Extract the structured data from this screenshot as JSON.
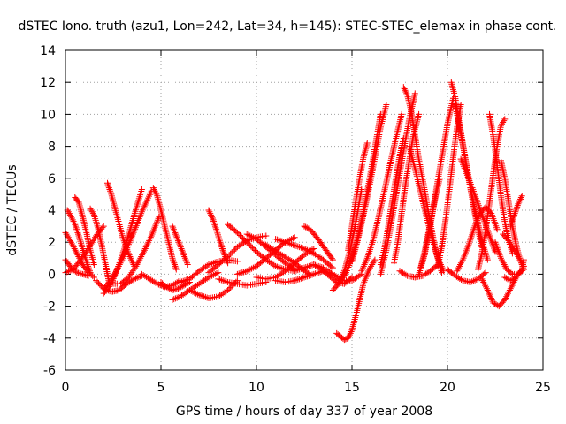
{
  "chart_data": {
    "type": "scatter",
    "title": "dSTEC Iono. truth (azu1, Lon=242, Lat=34, h=145): STEC-STEC_elemax in phase cont.",
    "xlabel": "GPS time / hours of day 337 of year 2008",
    "ylabel": "dSTEC  / TECUs",
    "xlim": [
      0,
      25
    ],
    "ylim": [
      -6,
      14
    ],
    "x_ticks": [
      0,
      5,
      10,
      15,
      20,
      25
    ],
    "y_ticks": [
      -6,
      -4,
      -2,
      0,
      2,
      4,
      6,
      8,
      10,
      12,
      14
    ],
    "x_tick_labels": [
      "0",
      "5",
      "10",
      "15",
      "20",
      "25"
    ],
    "y_tick_labels": [
      "-6",
      "-4",
      "-2",
      "0",
      "2",
      "4",
      "6",
      "8",
      "10",
      "12",
      "14"
    ],
    "grid": true,
    "marker": "+",
    "marker_color": "#ff0000",
    "series": [
      {
        "x": [
          0.0,
          0.3,
          0.6,
          0.9,
          1.2,
          1.5
        ],
        "y": [
          2.6,
          2.0,
          1.3,
          0.6,
          0.1,
          -0.2
        ]
      },
      {
        "x": [
          0.1,
          0.3,
          0.5,
          0.7,
          0.9,
          1.1,
          1.3
        ],
        "y": [
          4.0,
          3.6,
          3.1,
          2.4,
          1.6,
          0.8,
          0.1
        ]
      },
      {
        "x": [
          0.5,
          0.7,
          0.9,
          1.1,
          1.3,
          1.5
        ],
        "y": [
          4.8,
          4.5,
          3.6,
          2.6,
          1.5,
          0.6
        ]
      },
      {
        "x": [
          0.0,
          0.3,
          0.6,
          0.9,
          1.2
        ],
        "y": [
          0.9,
          0.4,
          0.1,
          0.0,
          -0.1
        ]
      },
      {
        "x": [
          0.0,
          0.4,
          0.8,
          1.2,
          1.6,
          2.0
        ],
        "y": [
          0.1,
          0.3,
          0.9,
          1.6,
          2.4,
          3.0
        ]
      },
      {
        "x": [
          1.3,
          1.5,
          1.7,
          1.9,
          2.1,
          2.3
        ],
        "y": [
          4.1,
          3.7,
          2.9,
          1.8,
          0.6,
          -0.6
        ]
      },
      {
        "x": [
          1.6,
          2.0,
          2.4,
          2.8,
          3.2,
          3.6,
          4.0
        ],
        "y": [
          -0.4,
          -0.9,
          -1.1,
          -1.0,
          -0.6,
          -0.3,
          -0.1
        ]
      },
      {
        "x": [
          2.2,
          2.4,
          2.6,
          2.8,
          3.0,
          3.3,
          3.6
        ],
        "y": [
          5.7,
          5.0,
          4.1,
          3.2,
          2.3,
          1.3,
          0.5
        ]
      },
      {
        "x": [
          2.0,
          2.5,
          3.0,
          3.5,
          4.0,
          4.5
        ],
        "y": [
          -0.9,
          -0.2,
          1.0,
          2.4,
          3.9,
          5.2
        ]
      },
      {
        "x": [
          2.0,
          2.4,
          2.8,
          3.2,
          3.6,
          4.0
        ],
        "y": [
          -1.2,
          -0.6,
          0.6,
          2.0,
          3.7,
          5.3
        ]
      },
      {
        "x": [
          2.5,
          2.9,
          3.3,
          3.7,
          4.1,
          4.5,
          4.9
        ],
        "y": [
          -0.6,
          -0.6,
          -0.2,
          0.5,
          1.4,
          2.4,
          3.6
        ]
      },
      {
        "x": [
          4.6,
          4.8,
          5.0,
          5.2,
          5.4,
          5.6,
          5.8
        ],
        "y": [
          5.4,
          4.9,
          4.0,
          3.0,
          2.0,
          1.0,
          0.3
        ]
      },
      {
        "x": [
          4.0,
          4.4,
          4.8,
          5.2,
          5.6,
          6.0
        ],
        "y": [
          0.0,
          -0.3,
          -0.6,
          -0.8,
          -0.7,
          -0.4
        ]
      },
      {
        "x": [
          5.0,
          5.3,
          5.6,
          5.9,
          6.2,
          6.5
        ],
        "y": [
          -0.5,
          -0.8,
          -1.0,
          -0.9,
          -0.7,
          -0.5
        ]
      },
      {
        "x": [
          5.6,
          6.0,
          6.5,
          7.0,
          7.5,
          8.0
        ],
        "y": [
          -1.6,
          -1.4,
          -1.0,
          -0.6,
          -0.2,
          0.1
        ]
      },
      {
        "x": [
          5.6,
          5.8,
          6.0,
          6.2,
          6.4
        ],
        "y": [
          3.0,
          2.4,
          1.8,
          1.2,
          0.6
        ]
      },
      {
        "x": [
          6.0,
          6.5,
          7.0,
          7.5,
          8.0,
          8.5,
          9.0
        ],
        "y": [
          -0.5,
          -0.3,
          0.2,
          0.6,
          0.8,
          0.9,
          0.8
        ]
      },
      {
        "x": [
          6.5,
          7.0,
          7.5,
          8.0,
          8.5,
          9.0
        ],
        "y": [
          -1.0,
          -1.3,
          -1.5,
          -1.4,
          -1.0,
          -0.4
        ]
      },
      {
        "x": [
          7.5,
          7.7,
          7.9,
          8.1,
          8.3,
          8.5
        ],
        "y": [
          4.0,
          3.5,
          2.8,
          2.0,
          1.3,
          0.7
        ]
      },
      {
        "x": [
          7.5,
          8.0,
          8.5,
          9.0,
          9.5,
          10.0,
          10.5
        ],
        "y": [
          0.1,
          0.6,
          1.1,
          1.7,
          2.1,
          2.3,
          2.4
        ]
      },
      {
        "x": [
          8.5,
          9.0,
          9.5,
          10.0,
          10.5,
          11.0,
          11.5,
          12.0
        ],
        "y": [
          3.1,
          2.6,
          2.0,
          1.4,
          0.9,
          0.5,
          0.3,
          0.2
        ]
      },
      {
        "x": [
          8.0,
          8.5,
          9.0,
          9.5,
          10.0,
          10.5
        ],
        "y": [
          -0.3,
          -0.5,
          -0.6,
          -0.7,
          -0.6,
          -0.5
        ]
      },
      {
        "x": [
          9.5,
          10.0,
          10.5,
          11.0,
          11.5,
          12.0
        ],
        "y": [
          2.5,
          2.2,
          1.7,
          1.2,
          0.7,
          0.3
        ]
      },
      {
        "x": [
          9.0,
          9.5,
          10.0,
          10.5,
          11.0,
          11.5,
          12.0
        ],
        "y": [
          0.0,
          0.2,
          0.5,
          1.0,
          1.5,
          2.0,
          2.3
        ]
      },
      {
        "x": [
          10.0,
          10.5,
          11.0,
          11.5,
          12.0,
          12.5,
          13.0
        ],
        "y": [
          -0.2,
          -0.3,
          -0.2,
          0.2,
          0.7,
          1.2,
          1.6
        ]
      },
      {
        "x": [
          10.4,
          10.8,
          11.2,
          11.6,
          12.0,
          12.4,
          12.8
        ],
        "y": [
          1.9,
          1.6,
          1.3,
          1.0,
          0.7,
          0.3,
          0.0
        ]
      },
      {
        "x": [
          11.0,
          11.5,
          12.0,
          12.5,
          13.0,
          13.5,
          14.0
        ],
        "y": [
          2.2,
          2.0,
          1.8,
          1.6,
          1.3,
          0.9,
          0.4
        ]
      },
      {
        "x": [
          11.0,
          11.5,
          12.0,
          12.5,
          13.0,
          13.5,
          14.0,
          14.5
        ],
        "y": [
          -0.4,
          -0.5,
          -0.4,
          -0.2,
          0.0,
          0.2,
          0.0,
          -0.4
        ]
      },
      {
        "x": [
          12.5,
          12.8,
          13.1,
          13.4,
          13.7,
          14.0
        ],
        "y": [
          3.0,
          2.8,
          2.4,
          1.9,
          1.4,
          0.9
        ]
      },
      {
        "x": [
          13.0,
          13.4,
          13.8,
          14.2,
          14.6,
          15.0
        ],
        "y": [
          0.6,
          0.3,
          -0.1,
          -0.5,
          -0.6,
          -0.2
        ]
      },
      {
        "x": [
          12.0,
          12.5,
          13.0,
          13.5,
          14.0,
          14.5,
          15.0,
          15.5
        ],
        "y": [
          0.2,
          0.4,
          0.6,
          0.4,
          0.0,
          -0.4,
          -0.4,
          0.0
        ]
      },
      {
        "x": [
          14.0,
          14.3,
          14.6,
          14.9,
          15.2,
          15.5
        ],
        "y": [
          -1.0,
          -0.6,
          0.2,
          1.5,
          3.2,
          5.3
        ]
      },
      {
        "x": [
          14.2,
          14.4,
          14.6,
          14.8,
          15.0,
          15.2,
          15.4,
          15.6,
          15.9,
          16.2
        ],
        "y": [
          -3.7,
          -3.9,
          -4.1,
          -4.0,
          -3.5,
          -2.6,
          -1.6,
          -0.6,
          0.3,
          0.9
        ]
      },
      {
        "x": [
          14.4,
          14.7,
          15.0,
          15.3,
          15.6,
          15.9,
          16.2,
          16.5
        ],
        "y": [
          -0.4,
          0.1,
          1.0,
          2.3,
          3.9,
          5.8,
          7.9,
          10.0
        ]
      },
      {
        "x": [
          14.8,
          15.0,
          15.2,
          15.4,
          15.6,
          15.8
        ],
        "y": [
          1.5,
          3.0,
          4.6,
          6.0,
          7.3,
          8.2
        ]
      },
      {
        "x": [
          15.0,
          15.3,
          15.6,
          15.9,
          16.2,
          16.5,
          16.8
        ],
        "y": [
          0.8,
          2.1,
          3.7,
          5.4,
          7.3,
          9.2,
          10.6
        ]
      },
      {
        "x": [
          15.5,
          15.8,
          16.1,
          16.4,
          16.7,
          17.0,
          17.3,
          17.6
        ],
        "y": [
          0.2,
          1.0,
          2.1,
          3.6,
          5.2,
          6.9,
          8.5,
          10.0
        ]
      },
      {
        "x": [
          16.5,
          16.7,
          16.9,
          17.1,
          17.3,
          17.5,
          17.7
        ],
        "y": [
          0.6,
          1.6,
          3.0,
          4.5,
          6.0,
          7.4,
          8.5
        ]
      },
      {
        "x": [
          16.5,
          16.8,
          17.1,
          17.4,
          17.7,
          18.0,
          18.3
        ],
        "y": [
          0.0,
          1.5,
          3.5,
          5.6,
          7.7,
          9.7,
          11.3
        ]
      },
      {
        "x": [
          17.2,
          17.4,
          17.6,
          17.8,
          18.0,
          18.2,
          18.5
        ],
        "y": [
          0.7,
          2.0,
          3.8,
          5.6,
          7.1,
          8.6,
          10.0
        ]
      },
      {
        "x": [
          17.7,
          17.9,
          18.1,
          18.3,
          18.5,
          18.8,
          19.1,
          19.4,
          19.7
        ],
        "y": [
          11.7,
          11.2,
          10.2,
          8.7,
          7.2,
          5.3,
          3.2,
          1.4,
          0.1
        ]
      },
      {
        "x": [
          18.0,
          18.3,
          18.6,
          18.9,
          19.2,
          19.5,
          19.8
        ],
        "y": [
          8.0,
          6.6,
          5.1,
          3.6,
          2.2,
          1.0,
          0.2
        ]
      },
      {
        "x": [
          17.5,
          17.9,
          18.3,
          18.7,
          19.1,
          19.5
        ],
        "y": [
          0.2,
          -0.1,
          -0.2,
          -0.1,
          0.2,
          0.6
        ]
      },
      {
        "x": [
          18.6,
          18.8,
          19.0,
          19.2,
          19.4,
          19.6
        ],
        "y": [
          0.4,
          1.4,
          2.6,
          3.8,
          5.0,
          6.0
        ]
      },
      {
        "x": [
          18.5,
          18.8,
          19.1,
          19.4,
          19.7,
          20.0,
          20.3
        ],
        "y": [
          0.0,
          1.2,
          3.0,
          5.2,
          7.3,
          9.4,
          11.0
        ]
      },
      {
        "x": [
          19.5,
          19.7,
          19.9,
          20.1,
          20.3,
          20.5,
          20.7
        ],
        "y": [
          0.5,
          1.7,
          3.4,
          5.3,
          7.3,
          9.2,
          10.6
        ]
      },
      {
        "x": [
          20.2,
          20.4,
          20.6,
          20.8,
          21.0,
          21.2,
          21.5,
          21.8,
          22.1
        ],
        "y": [
          12.0,
          11.1,
          9.6,
          8.2,
          6.7,
          5.4,
          3.7,
          2.1,
          0.9
        ]
      },
      {
        "x": [
          20.4,
          20.6,
          20.8,
          21.0,
          21.2,
          21.4,
          21.6,
          21.8
        ],
        "y": [
          10.6,
          9.4,
          8.1,
          6.8,
          5.4,
          4.0,
          2.8,
          1.7
        ]
      },
      {
        "x": [
          20.7,
          21.0,
          21.3,
          21.6,
          21.9,
          22.2,
          22.5
        ],
        "y": [
          7.2,
          6.3,
          5.4,
          4.4,
          3.4,
          2.4,
          1.4
        ]
      },
      {
        "x": [
          20.5,
          20.8,
          21.1,
          21.4,
          21.7,
          22.0,
          22.3,
          22.6
        ],
        "y": [
          0.2,
          0.9,
          1.8,
          2.9,
          3.8,
          4.2,
          3.8,
          2.8
        ]
      },
      {
        "x": [
          20.0,
          20.4,
          20.8,
          21.2,
          21.6,
          22.0
        ],
        "y": [
          0.3,
          -0.1,
          -0.4,
          -0.5,
          -0.3,
          0.1
        ]
      },
      {
        "x": [
          21.6,
          21.8,
          22.0,
          22.2,
          22.4,
          22.6,
          22.8,
          23.0
        ],
        "y": [
          0.3,
          1.3,
          2.8,
          4.5,
          6.3,
          8.0,
          9.3,
          9.7
        ]
      },
      {
        "x": [
          22.2,
          22.4,
          22.6,
          22.8,
          23.0,
          23.2,
          23.4
        ],
        "y": [
          10.0,
          8.6,
          6.8,
          4.9,
          3.3,
          2.1,
          1.3
        ]
      },
      {
        "x": [
          21.8,
          22.1,
          22.4,
          22.7,
          23.0,
          23.3,
          23.6
        ],
        "y": [
          -0.3,
          -1.0,
          -1.8,
          -2.0,
          -1.6,
          -0.9,
          -0.2
        ]
      },
      {
        "x": [
          22.8,
          23.0,
          23.2,
          23.4,
          23.6,
          23.8,
          24.0
        ],
        "y": [
          7.1,
          6.0,
          4.5,
          3.0,
          1.8,
          0.9,
          0.3
        ]
      },
      {
        "x": [
          22.5,
          22.8,
          23.1,
          23.4,
          23.7,
          24.0
        ],
        "y": [
          2.0,
          1.0,
          0.3,
          0.0,
          0.0,
          0.3
        ]
      },
      {
        "x": [
          23.3,
          23.5,
          23.7,
          23.9
        ],
        "y": [
          3.0,
          3.7,
          4.4,
          4.9
        ]
      },
      {
        "x": [
          23.0,
          23.3,
          23.6,
          23.9,
          24.0
        ],
        "y": [
          -0.2,
          -0.4,
          -0.2,
          0.3,
          0.9
        ]
      },
      {
        "x": [
          22.9,
          23.2,
          23.5,
          23.8,
          24.0
        ],
        "y": [
          2.5,
          2.1,
          1.5,
          0.9,
          0.5
        ]
      }
    ]
  }
}
